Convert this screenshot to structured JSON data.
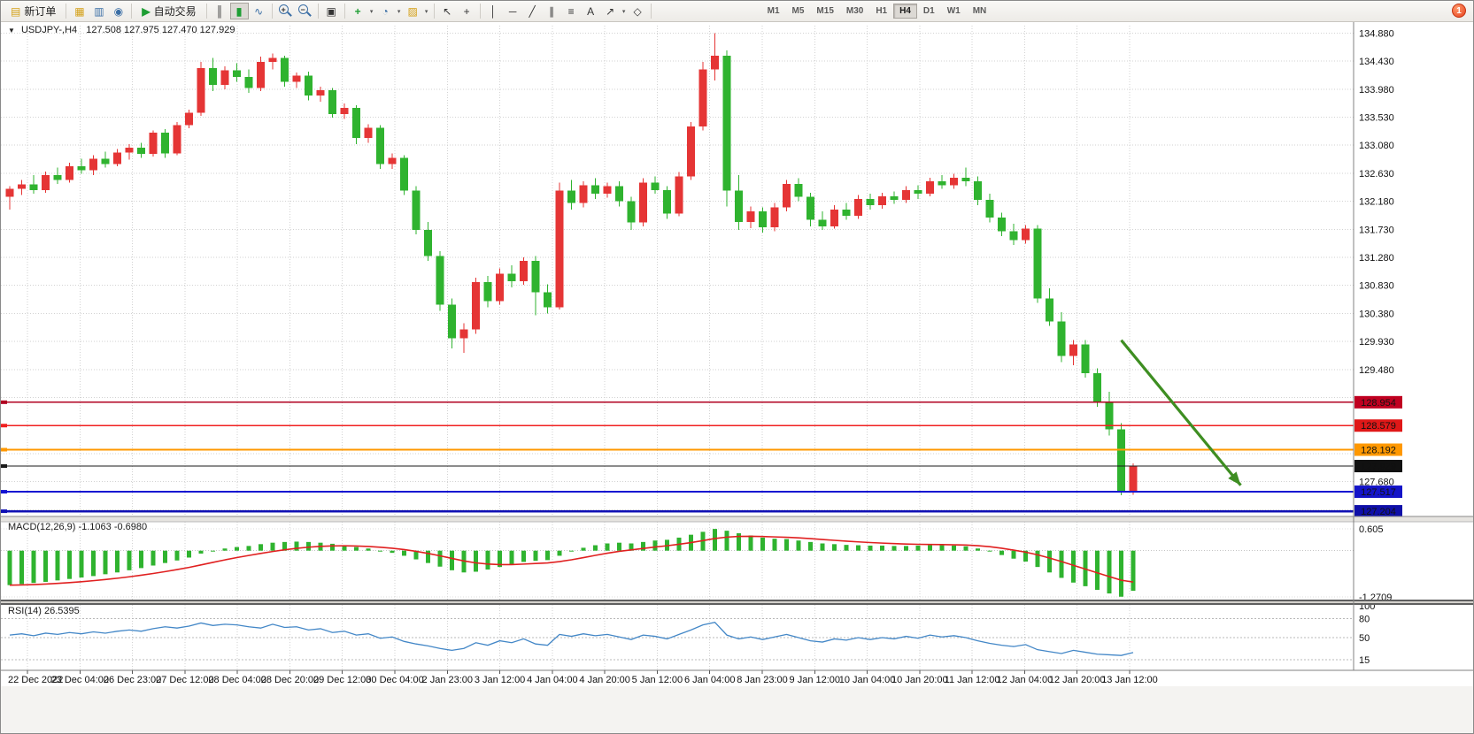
{
  "toolbar": {
    "new_order_label": "新订单",
    "auto_trading_label": "自动交易",
    "timeframes": [
      "M1",
      "M5",
      "M15",
      "M30",
      "H1",
      "H4",
      "D1",
      "W1",
      "MN"
    ],
    "active_timeframe": "H4",
    "notification_count": "1"
  },
  "icons": {
    "doc": "▤",
    "charts": "▦",
    "profiles": "▥",
    "navigator": "◉",
    "play": "▶",
    "bars": "║",
    "candles": "▮",
    "linechart": "∿",
    "plus": "+",
    "minus": "−",
    "tile": "▣",
    "indicator": "+",
    "clock": "◔",
    "template": "▨",
    "cursor": "↖",
    "crosshair": "+",
    "vline": "│",
    "hline": "─",
    "trend": "╱",
    "channel": "∥",
    "fib": "≡",
    "text": "A",
    "arrowtool": "↗",
    "shapes": "◇",
    "caret": "▾",
    "expand": "▼"
  },
  "chart_header": {
    "symbol_period": "USDJPY-,H4",
    "ohlc": "127.508 127.975 127.470 127.929"
  },
  "indicators": {
    "macd_header": "MACD(12,26,9) -1.1063 -0.6980",
    "rsi_header": "RSI(14) 26.5395"
  },
  "colors": {
    "bull": "#e53535",
    "bear": "#2fb32f",
    "macd_hist": "#2fb32f",
    "macd_signal": "#e02020",
    "rsi_line": "#4387c7",
    "grid": "#d2d2d2",
    "axis_line": "#808080",
    "arrow": "#3e8e22"
  },
  "chart_data": {
    "type": "candlestick",
    "symbol": "USDJPY-",
    "timeframe": "H4",
    "price_axis": {
      "max": 135.0,
      "min": 127.12,
      "labels": [
        "134.880",
        "134.430",
        "133.980",
        "133.530",
        "133.080",
        "132.630",
        "132.180",
        "131.730",
        "131.280",
        "130.830",
        "130.380",
        "129.930",
        "129.480",
        "127.680"
      ],
      "grid_top": 134.88,
      "grid_step": 0.45
    },
    "time_labels": [
      "22 Dec 2022",
      "23 Dec 04:00",
      "26 Dec 23:00",
      "27 Dec 12:00",
      "28 Dec 04:00",
      "28 Dec 20:00",
      "29 Dec 12:00",
      "30 Dec 04:00",
      "2 Jan 23:00",
      "3 Jan 12:00",
      "4 Jan 04:00",
      "4 Jan 20:00",
      "5 Jan 12:00",
      "6 Jan 04:00",
      "8 Jan 23:00",
      "9 Jan 12:00",
      "10 Jan 04:00",
      "10 Jan 20:00",
      "11 Jan 12:00",
      "12 Jan 04:00",
      "12 Jan 20:00",
      "13 Jan 12:00"
    ],
    "candles": [
      [
        132.25,
        132.42,
        132.05,
        132.38
      ],
      [
        132.38,
        132.52,
        132.28,
        132.45
      ],
      [
        132.45,
        132.6,
        132.3,
        132.36
      ],
      [
        132.36,
        132.66,
        132.32,
        132.6
      ],
      [
        132.6,
        132.72,
        132.46,
        132.52
      ],
      [
        132.52,
        132.8,
        132.48,
        132.74
      ],
      [
        132.74,
        132.86,
        132.62,
        132.68
      ],
      [
        132.68,
        132.92,
        132.6,
        132.86
      ],
      [
        132.86,
        132.98,
        132.72,
        132.78
      ],
      [
        132.78,
        133.02,
        132.74,
        132.96
      ],
      [
        132.96,
        133.1,
        132.85,
        133.04
      ],
      [
        133.04,
        133.12,
        132.88,
        132.94
      ],
      [
        132.94,
        133.32,
        132.9,
        133.28
      ],
      [
        133.28,
        133.34,
        132.88,
        132.95
      ],
      [
        132.95,
        133.45,
        132.92,
        133.4
      ],
      [
        133.4,
        133.65,
        133.35,
        133.6
      ],
      [
        133.6,
        134.42,
        133.55,
        134.32
      ],
      [
        134.32,
        134.48,
        133.95,
        134.05
      ],
      [
        134.05,
        134.35,
        133.98,
        134.28
      ],
      [
        134.28,
        134.4,
        134.1,
        134.18
      ],
      [
        134.18,
        134.3,
        133.92,
        134.0
      ],
      [
        134.0,
        134.5,
        133.95,
        134.42
      ],
      [
        134.42,
        134.55,
        134.3,
        134.48
      ],
      [
        134.48,
        134.52,
        134.02,
        134.1
      ],
      [
        134.1,
        134.25,
        134.0,
        134.2
      ],
      [
        134.2,
        134.26,
        133.8,
        133.88
      ],
      [
        133.88,
        134.02,
        133.78,
        133.96
      ],
      [
        133.96,
        134.0,
        133.52,
        133.58
      ],
      [
        133.58,
        133.75,
        133.5,
        133.68
      ],
      [
        133.68,
        133.72,
        133.1,
        133.2
      ],
      [
        133.2,
        133.42,
        133.12,
        133.36
      ],
      [
        133.36,
        133.4,
        132.7,
        132.78
      ],
      [
        132.78,
        132.95,
        132.7,
        132.88
      ],
      [
        132.88,
        132.92,
        132.28,
        132.35
      ],
      [
        132.35,
        132.42,
        131.65,
        131.72
      ],
      [
        131.72,
        131.85,
        131.22,
        131.3
      ],
      [
        131.3,
        131.38,
        130.42,
        130.52
      ],
      [
        130.52,
        130.62,
        129.82,
        129.98
      ],
      [
        129.98,
        130.22,
        129.75,
        130.12
      ],
      [
        130.12,
        130.95,
        130.05,
        130.88
      ],
      [
        130.88,
        130.98,
        130.48,
        130.58
      ],
      [
        130.58,
        131.1,
        130.52,
        131.02
      ],
      [
        131.02,
        131.15,
        130.8,
        130.9
      ],
      [
        130.9,
        131.28,
        130.84,
        131.22
      ],
      [
        131.22,
        131.3,
        130.35,
        130.72
      ],
      [
        130.72,
        130.85,
        130.38,
        130.48
      ],
      [
        130.48,
        132.48,
        130.44,
        132.35
      ],
      [
        132.35,
        132.52,
        132.05,
        132.15
      ],
      [
        132.15,
        132.5,
        132.08,
        132.44
      ],
      [
        132.44,
        132.55,
        132.22,
        132.3
      ],
      [
        132.3,
        132.48,
        132.24,
        132.42
      ],
      [
        132.42,
        132.5,
        132.1,
        132.18
      ],
      [
        132.18,
        132.25,
        131.72,
        131.84
      ],
      [
        131.84,
        132.55,
        131.78,
        132.48
      ],
      [
        132.48,
        132.58,
        132.3,
        132.36
      ],
      [
        132.36,
        132.42,
        131.9,
        131.98
      ],
      [
        131.98,
        132.65,
        131.94,
        132.58
      ],
      [
        132.58,
        133.45,
        132.52,
        133.38
      ],
      [
        133.38,
        134.42,
        133.32,
        134.3
      ],
      [
        134.3,
        134.88,
        134.12,
        134.52
      ],
      [
        134.52,
        134.6,
        132.1,
        132.35
      ],
      [
        132.35,
        132.6,
        131.72,
        131.85
      ],
      [
        131.85,
        132.1,
        131.75,
        132.02
      ],
      [
        132.02,
        132.08,
        131.68,
        131.76
      ],
      [
        131.76,
        132.15,
        131.7,
        132.08
      ],
      [
        132.08,
        132.52,
        132.02,
        132.46
      ],
      [
        132.46,
        132.55,
        132.18,
        132.25
      ],
      [
        132.25,
        132.32,
        131.78,
        131.88
      ],
      [
        131.88,
        132.02,
        131.72,
        131.78
      ],
      [
        131.78,
        132.12,
        131.74,
        132.05
      ],
      [
        132.05,
        132.15,
        131.88,
        131.95
      ],
      [
        131.95,
        132.28,
        131.9,
        132.22
      ],
      [
        132.22,
        132.3,
        132.05,
        132.12
      ],
      [
        132.12,
        132.32,
        132.06,
        132.26
      ],
      [
        132.26,
        132.34,
        132.14,
        132.2
      ],
      [
        132.2,
        132.42,
        132.15,
        132.36
      ],
      [
        132.36,
        132.44,
        132.22,
        132.3
      ],
      [
        132.3,
        132.56,
        132.26,
        132.5
      ],
      [
        132.5,
        132.6,
        132.38,
        132.44
      ],
      [
        132.44,
        132.62,
        132.38,
        132.56
      ],
      [
        132.56,
        132.72,
        132.42,
        132.5
      ],
      [
        132.5,
        132.58,
        132.12,
        132.2
      ],
      [
        132.2,
        132.3,
        131.84,
        131.92
      ],
      [
        131.92,
        132.0,
        131.62,
        131.7
      ],
      [
        131.7,
        131.82,
        131.48,
        131.56
      ],
      [
        131.56,
        131.8,
        131.5,
        131.74
      ],
      [
        131.74,
        131.8,
        130.55,
        130.62
      ],
      [
        130.62,
        130.78,
        130.18,
        130.25
      ],
      [
        130.25,
        130.4,
        129.6,
        129.7
      ],
      [
        129.7,
        129.95,
        129.55,
        129.88
      ],
      [
        129.88,
        129.95,
        129.35,
        129.42
      ],
      [
        129.42,
        129.5,
        128.88,
        128.95
      ],
      [
        128.95,
        129.12,
        128.42,
        128.52
      ],
      [
        128.52,
        128.62,
        127.46,
        127.51
      ],
      [
        127.508,
        127.975,
        127.47,
        127.929
      ]
    ],
    "h_lines": [
      {
        "price": 128.954,
        "label": "128.954",
        "color": "#b00020",
        "label_bg": "#c00020",
        "width": 1.4
      },
      {
        "price": 128.579,
        "label": "128.579",
        "color": "#f02020",
        "label_bg": "#e01818",
        "width": 1.2
      },
      {
        "price": 128.192,
        "label": "128.192",
        "color": "#ff9800",
        "label_bg": "#ff9800",
        "width": 1.6
      },
      {
        "price": 127.929,
        "label": "127.929",
        "color": "#1a1a1a",
        "label_bg": "#111111",
        "width": 1.2
      },
      {
        "price": 127.517,
        "label": "127.517",
        "color": "#1414d2",
        "label_bg": "#1414c8",
        "width": 1.6
      },
      {
        "price": 127.204,
        "label": "127.204",
        "color": "#0f0fb4",
        "label_bg": "#0f0fa8",
        "width": 2.4
      }
    ],
    "arrow": {
      "start": {
        "index": 93,
        "price": 129.95
      },
      "end": {
        "index": 103,
        "price": 127.62
      }
    },
    "macd": {
      "scale_labels": [
        "0.605",
        "-1.2709"
      ],
      "hist": [
        -0.95,
        -0.92,
        -0.89,
        -0.86,
        -0.82,
        -0.78,
        -0.74,
        -0.7,
        -0.65,
        -0.6,
        -0.54,
        -0.48,
        -0.41,
        -0.34,
        -0.27,
        -0.19,
        -0.08,
        0.0,
        0.06,
        0.1,
        0.13,
        0.18,
        0.22,
        0.24,
        0.25,
        0.24,
        0.22,
        0.19,
        0.15,
        0.1,
        0.06,
        0.0,
        -0.06,
        -0.14,
        -0.24,
        -0.34,
        -0.44,
        -0.54,
        -0.6,
        -0.58,
        -0.52,
        -0.45,
        -0.38,
        -0.31,
        -0.28,
        -0.26,
        -0.14,
        -0.02,
        0.08,
        0.15,
        0.2,
        0.22,
        0.2,
        0.24,
        0.28,
        0.3,
        0.36,
        0.44,
        0.52,
        0.6,
        0.55,
        0.48,
        0.42,
        0.36,
        0.33,
        0.32,
        0.28,
        0.24,
        0.2,
        0.18,
        0.16,
        0.15,
        0.14,
        0.14,
        0.13,
        0.13,
        0.14,
        0.15,
        0.15,
        0.14,
        0.12,
        0.06,
        -0.02,
        -0.12,
        -0.22,
        -0.3,
        -0.45,
        -0.6,
        -0.75,
        -0.88,
        -0.98,
        -1.08,
        -1.18,
        -1.27,
        -1.1063
      ]
    },
    "rsi": {
      "scale_labels": [
        "100",
        "80",
        "50",
        "15"
      ],
      "level_lines": [
        80,
        50,
        15
      ],
      "values": [
        54,
        56,
        53,
        57,
        55,
        58,
        56,
        59,
        57,
        60,
        62,
        60,
        64,
        67,
        65,
        68,
        73,
        69,
        71,
        70,
        67,
        65,
        71,
        66,
        67,
        62,
        64,
        58,
        60,
        54,
        56,
        49,
        51,
        44,
        40,
        37,
        33,
        30,
        33,
        42,
        38,
        45,
        42,
        48,
        40,
        38,
        55,
        52,
        56,
        53,
        55,
        51,
        47,
        54,
        52,
        48,
        55,
        62,
        70,
        74,
        54,
        48,
        51,
        47,
        51,
        55,
        50,
        45,
        43,
        48,
        46,
        50,
        47,
        50,
        48,
        52,
        49,
        54,
        51,
        53,
        50,
        45,
        41,
        38,
        36,
        39,
        31,
        28,
        25,
        30,
        27,
        24,
        23,
        22,
        26.5
      ]
    }
  }
}
